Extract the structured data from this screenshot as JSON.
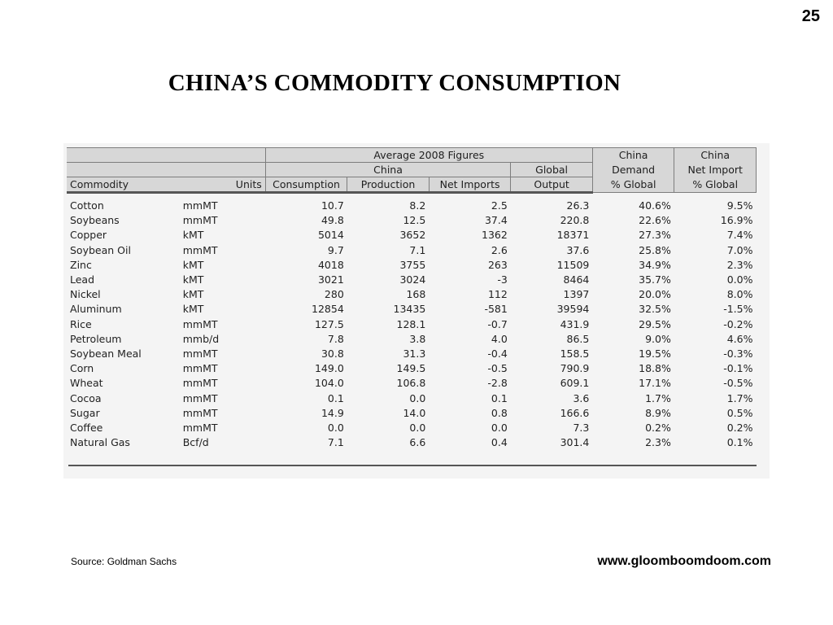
{
  "page_number": "25",
  "title": "CHINA’S  COMMODITY  CONSUMPTION",
  "table": {
    "group_header": "Average 2008 Figures",
    "china_header": "China",
    "global_output_header": [
      "Global",
      "Output"
    ],
    "china_demand_header": [
      "China",
      "Demand",
      "% Global"
    ],
    "china_net_import_header": [
      "China",
      "Net Import",
      "% Global"
    ],
    "commodity_header": "Commodity",
    "units_header": "Units",
    "consumption_header": "Consumption",
    "production_header": "Production",
    "net_imports_header": "Net Imports",
    "rows": [
      {
        "commodity": "Cotton",
        "units": "mmMT",
        "consumption": "10.7",
        "production": "8.2",
        "net_imports": "2.5",
        "global_output": "26.3",
        "demand_pct": "40.6%",
        "net_import_pct": "9.5%"
      },
      {
        "commodity": "Soybeans",
        "units": "mmMT",
        "consumption": "49.8",
        "production": "12.5",
        "net_imports": "37.4",
        "global_output": "220.8",
        "demand_pct": "22.6%",
        "net_import_pct": "16.9%"
      },
      {
        "commodity": "Copper",
        "units": "kMT",
        "consumption": "5014",
        "production": "3652",
        "net_imports": "1362",
        "global_output": "18371",
        "demand_pct": "27.3%",
        "net_import_pct": "7.4%"
      },
      {
        "commodity": "Soybean Oil",
        "units": "mmMT",
        "consumption": "9.7",
        "production": "7.1",
        "net_imports": "2.6",
        "global_output": "37.6",
        "demand_pct": "25.8%",
        "net_import_pct": "7.0%"
      },
      {
        "commodity": "Zinc",
        "units": "kMT",
        "consumption": "4018",
        "production": "3755",
        "net_imports": "263",
        "global_output": "11509",
        "demand_pct": "34.9%",
        "net_import_pct": "2.3%"
      },
      {
        "commodity": "Lead",
        "units": "kMT",
        "consumption": "3021",
        "production": "3024",
        "net_imports": "-3",
        "global_output": "8464",
        "demand_pct": "35.7%",
        "net_import_pct": "0.0%"
      },
      {
        "commodity": "Nickel",
        "units": "kMT",
        "consumption": "280",
        "production": "168",
        "net_imports": "112",
        "global_output": "1397",
        "demand_pct": "20.0%",
        "net_import_pct": "8.0%"
      },
      {
        "commodity": "Aluminum",
        "units": "kMT",
        "consumption": "12854",
        "production": "13435",
        "net_imports": "-581",
        "global_output": "39594",
        "demand_pct": "32.5%",
        "net_import_pct": "-1.5%"
      },
      {
        "commodity": "Rice",
        "units": "mmMT",
        "consumption": "127.5",
        "production": "128.1",
        "net_imports": "-0.7",
        "global_output": "431.9",
        "demand_pct": "29.5%",
        "net_import_pct": "-0.2%"
      },
      {
        "commodity": "Petroleum",
        "units": "mmb/d",
        "consumption": "7.8",
        "production": "3.8",
        "net_imports": "4.0",
        "global_output": "86.5",
        "demand_pct": "9.0%",
        "net_import_pct": "4.6%"
      },
      {
        "commodity": "Soybean Meal",
        "units": "mmMT",
        "consumption": "30.8",
        "production": "31.3",
        "net_imports": "-0.4",
        "global_output": "158.5",
        "demand_pct": "19.5%",
        "net_import_pct": "-0.3%"
      },
      {
        "commodity": "Corn",
        "units": "mmMT",
        "consumption": "149.0",
        "production": "149.5",
        "net_imports": "-0.5",
        "global_output": "790.9",
        "demand_pct": "18.8%",
        "net_import_pct": "-0.1%"
      },
      {
        "commodity": "Wheat",
        "units": "mmMT",
        "consumption": "104.0",
        "production": "106.8",
        "net_imports": "-2.8",
        "global_output": "609.1",
        "demand_pct": "17.1%",
        "net_import_pct": "-0.5%"
      },
      {
        "commodity": "Cocoa",
        "units": "mmMT",
        "consumption": "0.1",
        "production": "0.0",
        "net_imports": "0.1",
        "global_output": "3.6",
        "demand_pct": "1.7%",
        "net_import_pct": "1.7%"
      },
      {
        "commodity": "Sugar",
        "units": "mmMT",
        "consumption": "14.9",
        "production": "14.0",
        "net_imports": "0.8",
        "global_output": "166.6",
        "demand_pct": "8.9%",
        "net_import_pct": "0.5%"
      },
      {
        "commodity": "Coffee",
        "units": "mmMT",
        "consumption": "0.0",
        "production": "0.0",
        "net_imports": "0.0",
        "global_output": "7.3",
        "demand_pct": "0.2%",
        "net_import_pct": "0.2%"
      },
      {
        "commodity": "Natural Gas",
        "units": "Bcf/d",
        "consumption": "7.1",
        "production": "6.6",
        "net_imports": "0.4",
        "global_output": "301.4",
        "demand_pct": "2.3%",
        "net_import_pct": "0.1%"
      }
    ]
  },
  "source": "Source: Goldman Sachs",
  "website": "www.gloomboomdoom.com"
}
